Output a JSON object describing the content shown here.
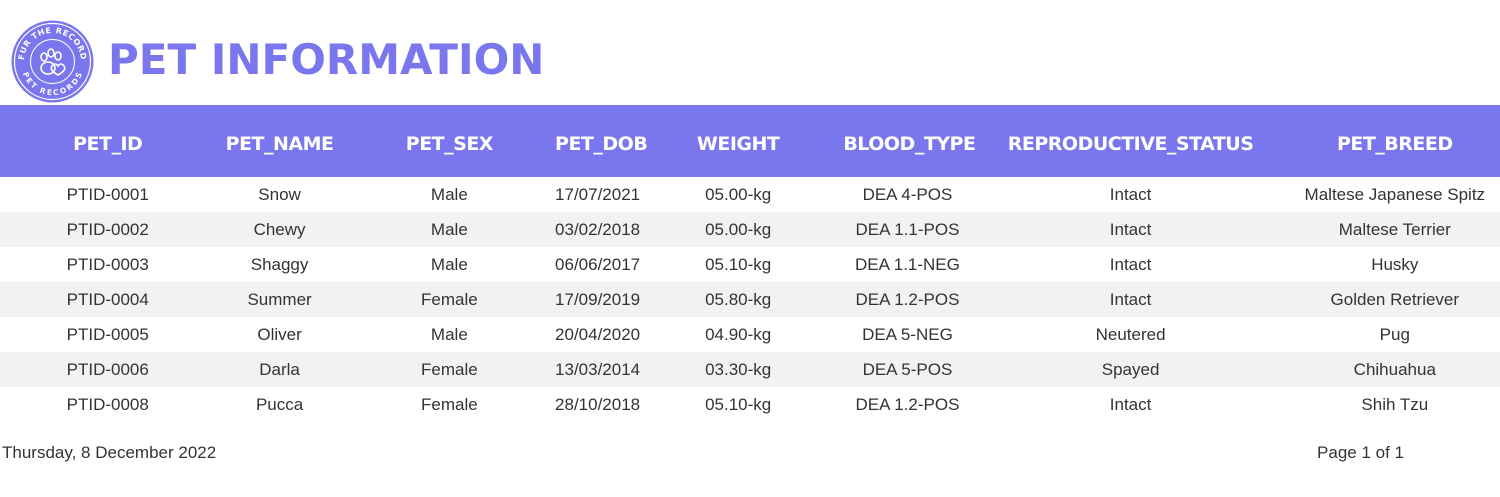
{
  "header": {
    "title": "PET INFORMATION",
    "logo": {
      "ring_text_top": "FUR THE RECORD",
      "ring_text_bottom": "PET RECORDS",
      "icon": "paw-heart-icon"
    }
  },
  "colors": {
    "accent": "#7a76ee",
    "header_text": "#ffffff",
    "row_stripe": "#f2f2f2",
    "text": "#333333"
  },
  "table": {
    "columns": [
      "PET_ID",
      "PET_NAME",
      "PET_SEX",
      "PET_DOB",
      "WEIGHT",
      "BLOOD_TYPE",
      "REPRODUCTIVE_STATUS",
      "PET_BREED"
    ],
    "rows": [
      [
        "PTID-0001",
        "Snow",
        "Male",
        "17/07/2021",
        "05.00-kg",
        "DEA 4-POS",
        "Intact",
        "Maltese Japanese Spitz"
      ],
      [
        "PTID-0002",
        "Chewy",
        "Male",
        "03/02/2018",
        "05.00-kg",
        "DEA 1.1-POS",
        "Intact",
        "Maltese Terrier"
      ],
      [
        "PTID-0003",
        "Shaggy",
        "Male",
        "06/06/2017",
        "05.10-kg",
        "DEA 1.1-NEG",
        "Intact",
        "Husky"
      ],
      [
        "PTID-0004",
        "Summer",
        "Female",
        "17/09/2019",
        "05.80-kg",
        "DEA 1.2-POS",
        "Intact",
        "Golden Retriever"
      ],
      [
        "PTID-0005",
        "Oliver",
        "Male",
        "20/04/2020",
        "04.90-kg",
        "DEA 5-NEG",
        "Neutered",
        "Pug"
      ],
      [
        "PTID-0006",
        "Darla",
        "Female",
        "13/03/2014",
        "03.30-kg",
        "DEA 5-POS",
        "Spayed",
        "Chihuahua"
      ],
      [
        "PTID-0008",
        "Pucca",
        "Female",
        "28/10/2018",
        "05.10-kg",
        "DEA 1.2-POS",
        "Intact",
        "Shih Tzu"
      ]
    ]
  },
  "footer": {
    "date": "Thursday, 8 December 2022",
    "page": "Page 1 of 1"
  }
}
